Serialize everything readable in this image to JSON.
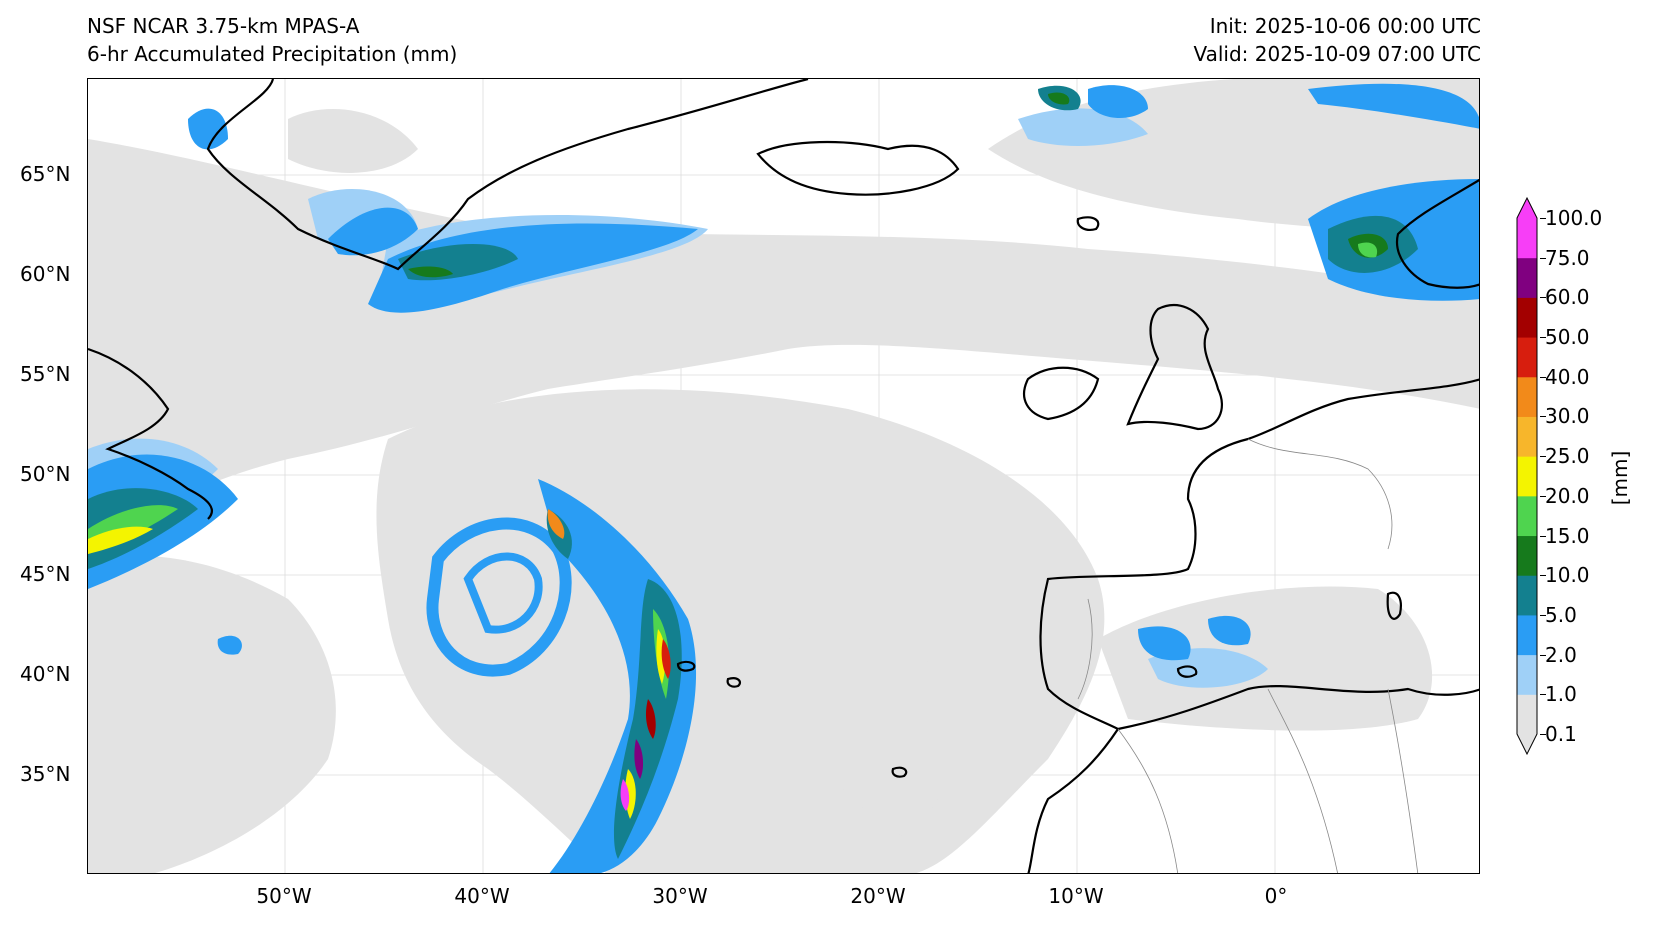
{
  "header": {
    "model": "NSF NCAR 3.75-km MPAS-A",
    "field": "6-hr Accumulated Precipitation (mm)",
    "init": "Init: 2025-10-06 00:00 UTC",
    "valid": "Valid: 2025-10-09 07:00 UTC"
  },
  "map": {
    "lat_labels": [
      "65°N",
      "60°N",
      "55°N",
      "50°N",
      "45°N",
      "40°N",
      "35°N"
    ],
    "lon_labels": [
      "50°W",
      "40°W",
      "30°W",
      "20°W",
      "10°W",
      "0°"
    ],
    "land_color": "#ffffff",
    "coastline_color": "#000000",
    "gridline_color": "#dcdcdc"
  },
  "colorbar": {
    "unit": "[mm]",
    "levels": [
      "0.1",
      "1.0",
      "2.0",
      "5.0",
      "10.0",
      "15.0",
      "20.0",
      "25.0",
      "30.0",
      "40.0",
      "50.0",
      "60.0",
      "75.0",
      "100.0"
    ],
    "colors": [
      "#e3e3e3",
      "#9fd0f7",
      "#2a9df4",
      "#13808f",
      "#167a1c",
      "#4fd44f",
      "#f4f400",
      "#f7b62b",
      "#f28a1a",
      "#d71e0e",
      "#a30000",
      "#800080",
      "#f73ef7"
    ]
  }
}
